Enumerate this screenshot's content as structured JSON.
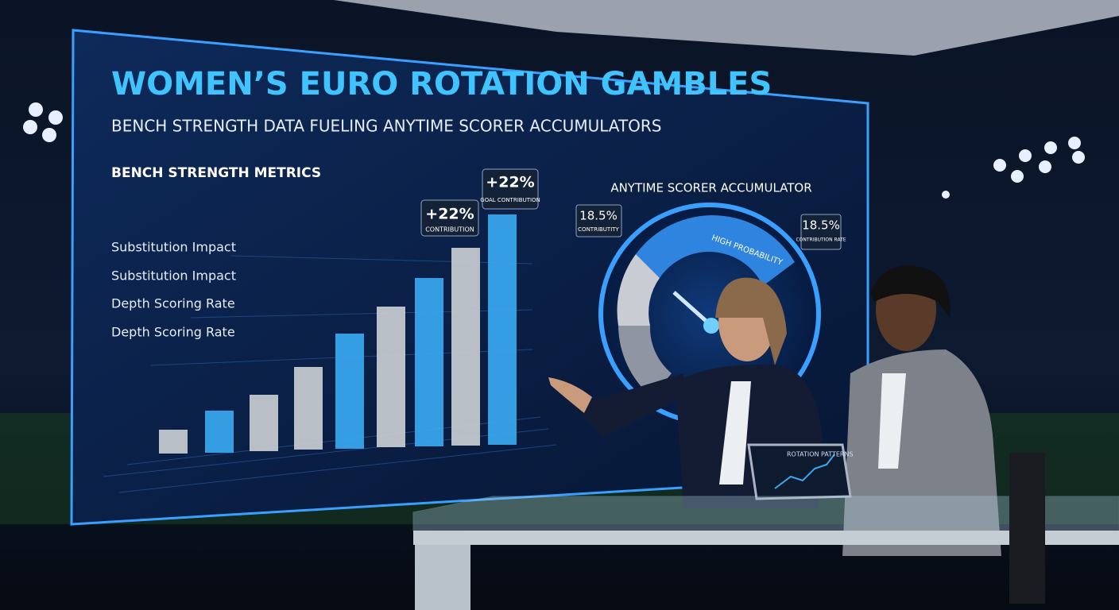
{
  "screen": {
    "title": "WOMEN’S EURO ROTATION GAMBLES",
    "subtitle": "BENCH STRENGTH DATA FUELING ANYTIME SCORER ACCUMULATORS",
    "left_panel": {
      "heading": "BENCH STRENGTH METRICS",
      "labels": [
        "Substitution Impact",
        "Substitution Impact",
        "Depth Scoring Rate",
        "Depth Scoring Rate"
      ],
      "callouts": [
        {
          "value": "+22%",
          "caption": "CONTRIBUTION"
        },
        {
          "value": "+22%",
          "caption": "GOAL CONTRIBUTION"
        }
      ],
      "bars": {
        "values": [
          30,
          53,
          71,
          104,
          145,
          177,
          212,
          249,
          290
        ],
        "colors": [
          "#c9cdd3",
          "#3aa8f0",
          "#c9cdd3",
          "#c9cdd3",
          "#3aa8f0",
          "#c9cdd3",
          "#3aa8f0",
          "#c9cdd3",
          "#3aa8f0"
        ]
      }
    },
    "right_panel": {
      "heading": "ANYTIME SCORER ACCUMULATOR",
      "gauge_label": "HIGH PROBABILITY",
      "callouts": [
        {
          "value": "18.5%",
          "caption": "CONTRIBUTITY"
        },
        {
          "value": "18.5%",
          "caption": "CONTRIBUTION RATE"
        }
      ]
    }
  },
  "tablet": {
    "title": "ROTATION PATTERNS"
  }
}
